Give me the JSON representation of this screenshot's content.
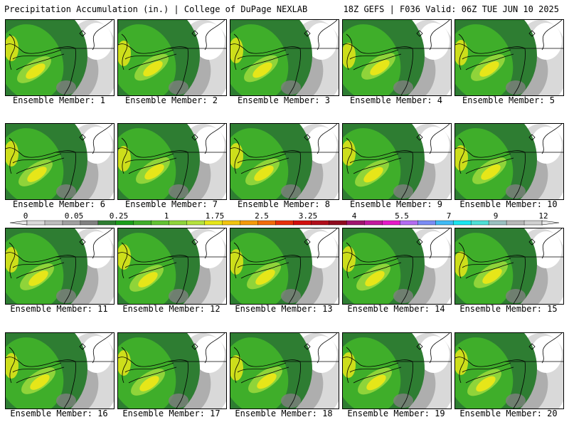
{
  "header": {
    "left": "Precipitation Accumulation (in.) | College of DuPage NEXLAB",
    "right": "18Z GEFS | F036 Valid: 06Z TUE JUN 10 2025"
  },
  "panels": [
    {
      "label": "Ensemble Member: 1"
    },
    {
      "label": "Ensemble Member: 2"
    },
    {
      "label": "Ensemble Member: 3"
    },
    {
      "label": "Ensemble Member: 4"
    },
    {
      "label": "Ensemble Member: 5"
    },
    {
      "label": "Ensemble Member: 6"
    },
    {
      "label": "Ensemble Member: 7"
    },
    {
      "label": "Ensemble Member: 8"
    },
    {
      "label": "Ensemble Member: 9"
    },
    {
      "label": "Ensemble Member: 10"
    },
    {
      "label": "Ensemble Member: 11"
    },
    {
      "label": "Ensemble Member: 12"
    },
    {
      "label": "Ensemble Member: 13"
    },
    {
      "label": "Ensemble Member: 14"
    },
    {
      "label": "Ensemble Member: 15"
    },
    {
      "label": "Ensemble Member: 16"
    },
    {
      "label": "Ensemble Member: 17"
    },
    {
      "label": "Ensemble Member: 18"
    },
    {
      "label": "Ensemble Member: 19"
    },
    {
      "label": "Ensemble Member: 20"
    }
  ],
  "colorbar": {
    "labels": [
      "0",
      "0.05",
      "0.25",
      "1",
      "1.75",
      "2.5",
      "3.25",
      "4",
      "5.5",
      "7",
      "9",
      "12"
    ],
    "colors": [
      "#d9d9d9",
      "#bdbdbd",
      "#a0a0a0",
      "#808080",
      "#2e7d32",
      "#1b9e1b",
      "#3fae2a",
      "#62c233",
      "#8fd43a",
      "#b5e23d",
      "#e6e619",
      "#f2c40f",
      "#f59a0a",
      "#f26b0a",
      "#e8300a",
      "#d10d0d",
      "#b00d1a",
      "#8f0a1f",
      "#a0146e",
      "#c21a9e",
      "#e61ac8",
      "#b36bf2",
      "#7a8cf5",
      "#3fbaf5",
      "#1ae6f0",
      "#4de0d6",
      "#9ac0c0",
      "#b8b8b8",
      "#d0d0d0"
    ]
  }
}
